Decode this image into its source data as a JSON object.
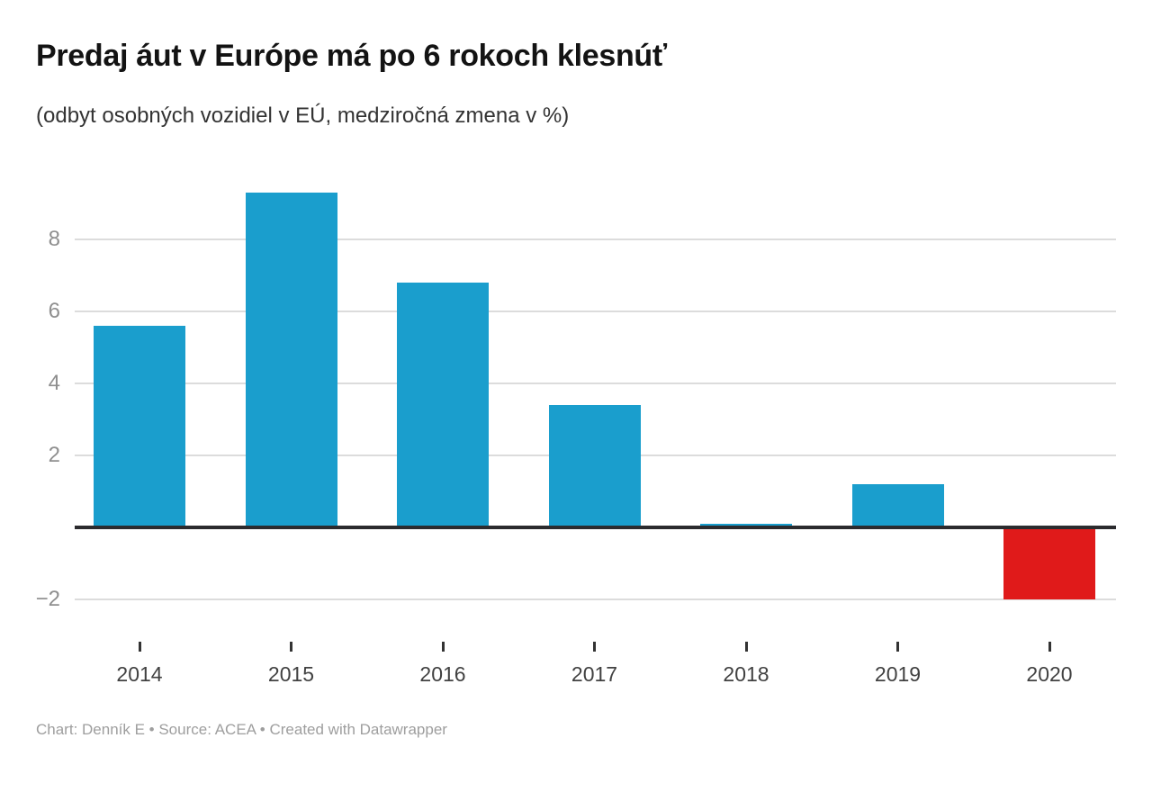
{
  "header": {
    "title": "Predaj áut v Európe má po 6 rokoch klesnúť",
    "subtitle": "(odbyt osobných vozidiel v EÚ, medziročná zmena v %)"
  },
  "chart_data": {
    "type": "bar",
    "categories": [
      "2014",
      "2015",
      "2016",
      "2017",
      "2018",
      "2019",
      "2020"
    ],
    "values": [
      5.6,
      9.3,
      6.8,
      3.4,
      0.1,
      1.2,
      -2.0
    ],
    "title": "Predaj áut v Európe má po 6 rokoch klesnúť",
    "subtitle": "(odbyt osobných vozidiel v EÚ, medziročná zmena v %)",
    "xlabel": "",
    "ylabel": "",
    "ylim": [
      -2.9,
      9.9
    ],
    "baseline": 0,
    "grid": true,
    "legend": false,
    "yticks": [
      {
        "label": "8",
        "value": 8
      },
      {
        "label": "6",
        "value": 6
      },
      {
        "label": "4",
        "value": 4
      },
      {
        "label": "2",
        "value": 2
      },
      {
        "label": "−2",
        "value": -2
      }
    ],
    "colors": {
      "positive_bar": "#1a9ecd",
      "negative_bar": "#e01a1a",
      "gridline": "#dcdcdc",
      "baseline": "#2b2b2e",
      "tick_mark": "#333333",
      "x_label_text": "#414141",
      "y_label_text": "#8f8f8f"
    }
  },
  "footer": {
    "credit": "Chart: Denník E • Source: ACEA • Created with Datawrapper"
  }
}
